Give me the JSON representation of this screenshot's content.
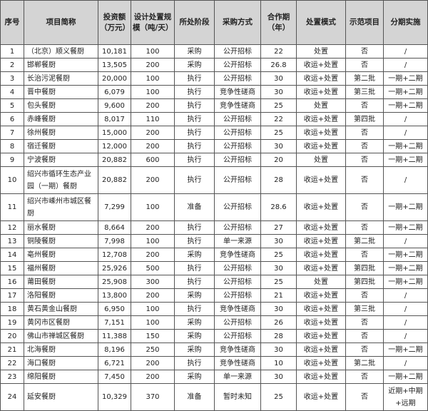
{
  "headers": [
    "序号",
    "项目简称",
    "投资额（万元）",
    "设计处置规模（吨/天）",
    "所处阶段",
    "采购方式",
    "合作期（年）",
    "处置模式",
    "示范项目",
    "分期实施"
  ],
  "rows": [
    [
      "1",
      "（北京）顺义餐厨",
      "10,181",
      "100",
      "采购",
      "公开招标",
      "22",
      "处置",
      "否",
      "/"
    ],
    [
      "2",
      "邯郸餐厨",
      "13,505",
      "200",
      "采购",
      "公开招标",
      "26.8",
      "收运+处置",
      "否",
      "/"
    ],
    [
      "3",
      "长治污泥餐厨",
      "20,000",
      "100",
      "执行",
      "公开招标",
      "30",
      "收运+处置",
      "第二批",
      "一期+二期"
    ],
    [
      "4",
      "晋中餐厨",
      "6,079",
      "100",
      "执行",
      "竞争性磋商",
      "30",
      "收运+处置",
      "第三批",
      "一期+二期"
    ],
    [
      "5",
      "包头餐厨",
      "9,600",
      "200",
      "执行",
      "竞争性磋商",
      "25",
      "处置",
      "否",
      "一期+二期"
    ],
    [
      "6",
      "赤峰餐厨",
      "8,017",
      "110",
      "执行",
      "公开招标",
      "22",
      "收运+处置",
      "第四批",
      "/"
    ],
    [
      "7",
      "徐州餐厨",
      "15,000",
      "200",
      "执行",
      "公开招标",
      "25",
      "收运+处置",
      "否",
      "/"
    ],
    [
      "8",
      "宿迁餐厨",
      "12,000",
      "200",
      "执行",
      "公开招标",
      "30",
      "收运+处置",
      "否",
      "一期+二期"
    ],
    [
      "9",
      "宁波餐厨",
      "20,882",
      "600",
      "执行",
      "公开招标",
      "20",
      "处置",
      "否",
      "一期+二期"
    ],
    [
      "10",
      "绍兴市循环生态产业园（一期）餐厨",
      "20,882",
      "200",
      "执行",
      "公开招标",
      "28",
      "收运+处置",
      "否",
      "/"
    ],
    [
      "11",
      "绍兴市嵊州市城区餐厨",
      "7,299",
      "100",
      "准备",
      "公开招标",
      "28.6",
      "收运+处置",
      "否",
      "一期+二期"
    ],
    [
      "12",
      "丽水餐厨",
      "8,664",
      "200",
      "执行",
      "公开招标",
      "27",
      "收运+处置",
      "否",
      "一期+二期"
    ],
    [
      "13",
      "铜陵餐厨",
      "7,998",
      "100",
      "执行",
      "单一来源",
      "30",
      "收运+处置",
      "第二批",
      "/"
    ],
    [
      "14",
      "亳州餐厨",
      "12,708",
      "200",
      "采购",
      "竞争性磋商",
      "25",
      "收运+处置",
      "否",
      "一期+二期"
    ],
    [
      "15",
      "福州餐厨",
      "25,926",
      "500",
      "执行",
      "公开招标",
      "30",
      "收运+处置",
      "第四批",
      "一期+二期"
    ],
    [
      "16",
      "莆田餐厨",
      "25,908",
      "300",
      "执行",
      "公开招标",
      "25",
      "处置",
      "第四批",
      "一期+二期"
    ],
    [
      "17",
      "洛阳餐厨",
      "13,800",
      "200",
      "采购",
      "公开招标",
      "21",
      "收运+处置",
      "否",
      "/"
    ],
    [
      "18",
      "黄石黄金山餐厨",
      "6,950",
      "100",
      "执行",
      "竞争性磋商",
      "30",
      "收运+处置",
      "第三批",
      "/"
    ],
    [
      "19",
      "黄冈市区餐厨",
      "7,151",
      "100",
      "采购",
      "公开招标",
      "26",
      "收运+处置",
      "否",
      "/"
    ],
    [
      "20",
      "佛山市禅城区餐厨",
      "11,388",
      "150",
      "采购",
      "公开招标",
      "28",
      "收运+处置",
      "否",
      "/"
    ],
    [
      "21",
      "北海餐厨",
      "8,196",
      "250",
      "采购",
      "竞争性磋商",
      "30",
      "收运+处置",
      "否",
      "一期+二期"
    ],
    [
      "22",
      "海口餐厨",
      "6,721",
      "200",
      "执行",
      "竞争性磋商",
      "10",
      "收运+处置",
      "第二批",
      "/"
    ],
    [
      "23",
      "绵阳餐厨",
      "7,450",
      "200",
      "采购",
      "单一来源",
      "30",
      "收运+处置",
      "否",
      "一期+二期"
    ],
    [
      "24",
      "延安餐厨",
      "10,329",
      "370",
      "准备",
      "暂时未知",
      "25",
      "收运+处置",
      "否",
      "近期+中期+远期"
    ]
  ]
}
